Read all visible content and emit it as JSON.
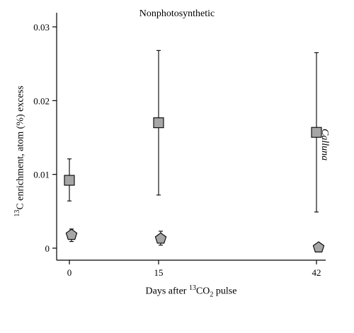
{
  "chart_data": {
    "type": "scatter",
    "title": "Nonphotosynthetic",
    "ylabel": {
      "pre": "13",
      "main": "C enrichment, atom (%) excess"
    },
    "xlabel": {
      "a": "Days after ",
      "sup": "13",
      "b": "CO",
      "sub": "2",
      "c": " pulse"
    },
    "side_label": "Calluna",
    "categories": [
      "0",
      "15",
      "42"
    ],
    "yticks": [
      "0",
      "0.01",
      "0.02",
      "0.03"
    ],
    "ylim": [
      -0.001,
      0.0315
    ],
    "series": [
      {
        "marker": "square",
        "color": "#a6a6a6",
        "values": [
          0.0092,
          0.017,
          0.0157
        ],
        "err_low": [
          0.0064,
          0.0072,
          0.0049
        ],
        "err_high": [
          0.0121,
          0.0268,
          0.0265
        ]
      },
      {
        "marker": "pentagon",
        "color": "#a6a6a6",
        "values": [
          0.0018,
          0.0013,
          0.0001
        ],
        "err_low": [
          0.0009,
          0.0004,
          0.0001
        ],
        "err_high": [
          0.0026,
          0.0023,
          0.0001
        ]
      }
    ]
  }
}
